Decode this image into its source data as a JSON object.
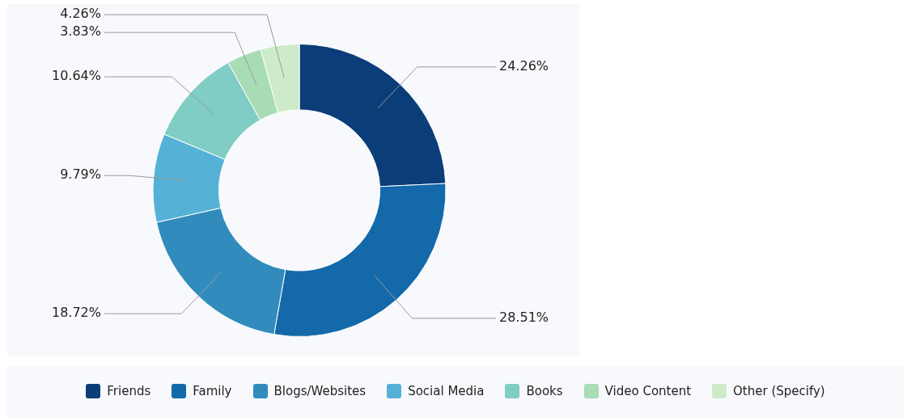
{
  "chart_data": {
    "type": "donut",
    "categories": [
      "Friends",
      "Family",
      "Blogs/Websites",
      "Social Media",
      "Books",
      "Video Content",
      "Other (Specify)"
    ],
    "values": [
      24.26,
      28.51,
      18.72,
      9.79,
      10.64,
      3.83,
      4.26
    ],
    "value_labels": [
      "24.26%",
      "28.51%",
      "18.72%",
      "9.79%",
      "10.64%",
      "3.83%",
      "4.26%"
    ],
    "colors": [
      "#0b3d78",
      "#1369a9",
      "#318cbd",
      "#55b2d6",
      "#7fcdc4",
      "#a8dcb5",
      "#cdebc9"
    ],
    "legend": "bottom"
  }
}
